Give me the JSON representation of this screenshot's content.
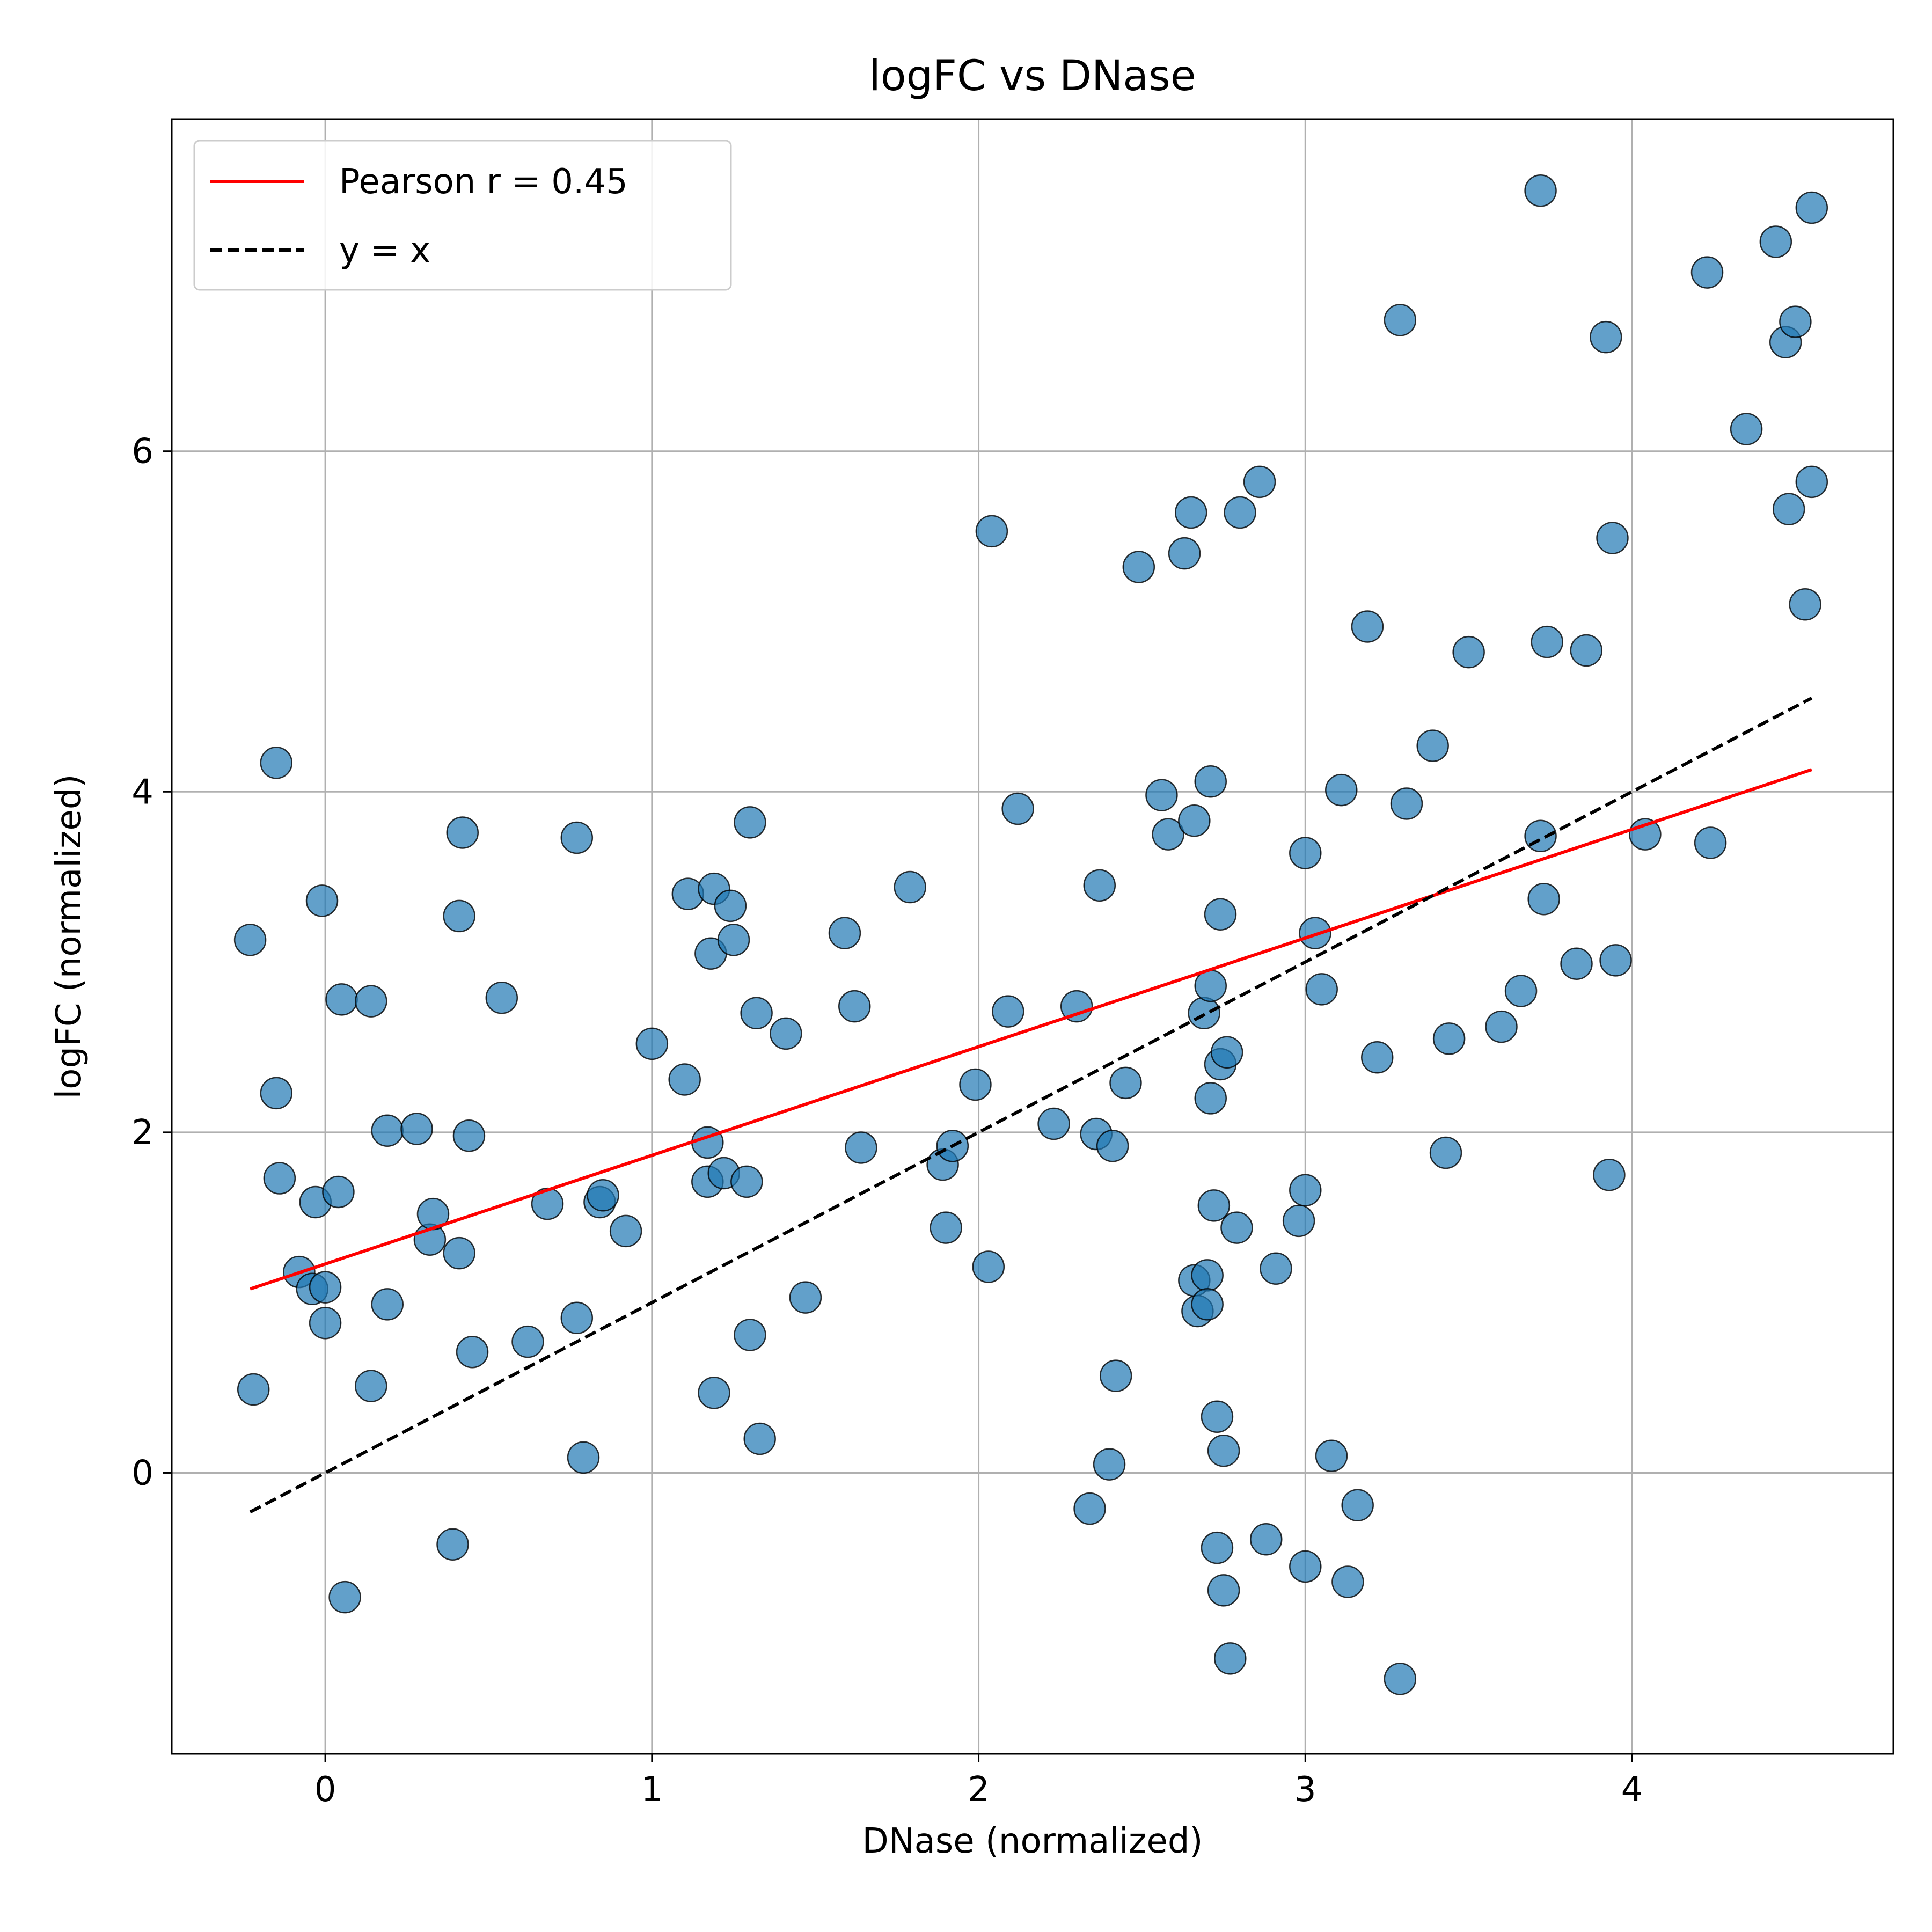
{
  "chart_data": {
    "type": "scatter",
    "title": "logFC vs DNase",
    "xlabel": "DNase (normalized)",
    "ylabel": "logFC (normalized)",
    "xlim": [
      -0.47,
      4.8
    ],
    "ylim": [
      -1.65,
      7.95
    ],
    "xticks": [
      0,
      1,
      2,
      3,
      4
    ],
    "yticks": [
      0,
      2,
      4,
      6
    ],
    "xtick_labels": [
      "0",
      "1",
      "2",
      "3",
      "4"
    ],
    "ytick_labels": [
      "0",
      "2",
      "4",
      "6"
    ],
    "grid": true,
    "legend_position": "top-left",
    "colors": {
      "points": "#1f77b4",
      "point_edge": "#000000",
      "fit_line": "#ff0000",
      "identity_line": "#000000",
      "grid": "#b0b0b0"
    },
    "lines": [
      {
        "name": "Pearson r = 0.45",
        "style": "solid",
        "color": "#ff0000",
        "x": [
          -0.23,
          4.55
        ],
        "y": [
          1.08,
          4.13
        ]
      },
      {
        "name": "y = x",
        "style": "dashed",
        "color": "#000000",
        "x": [
          -0.23,
          4.55
        ],
        "y": [
          -0.23,
          4.55
        ]
      }
    ],
    "points": [
      [
        -0.23,
        3.13
      ],
      [
        -0.22,
        0.49
      ],
      [
        -0.15,
        4.17
      ],
      [
        -0.15,
        2.23
      ],
      [
        -0.14,
        1.73
      ],
      [
        -0.08,
        1.18
      ],
      [
        -0.04,
        1.08
      ],
      [
        -0.03,
        1.59
      ],
      [
        0.0,
        1.09
      ],
      [
        0.0,
        0.88
      ],
      [
        -0.01,
        3.36
      ],
      [
        0.04,
        1.65
      ],
      [
        0.05,
        2.78
      ],
      [
        0.06,
        -0.73
      ],
      [
        0.14,
        0.51
      ],
      [
        0.14,
        2.77
      ],
      [
        0.19,
        0.99
      ],
      [
        0.19,
        2.01
      ],
      [
        0.28,
        2.02
      ],
      [
        0.32,
        1.37
      ],
      [
        0.33,
        1.52
      ],
      [
        0.41,
        3.27
      ],
      [
        0.41,
        1.29
      ],
      [
        0.42,
        3.76
      ],
      [
        0.44,
        1.98
      ],
      [
        0.45,
        0.71
      ],
      [
        0.54,
        2.79
      ],
      [
        0.39,
        -0.42
      ],
      [
        0.62,
        0.77
      ],
      [
        0.68,
        1.58
      ],
      [
        0.77,
        3.73
      ],
      [
        0.77,
        0.91
      ],
      [
        0.79,
        0.09
      ],
      [
        0.84,
        1.59
      ],
      [
        0.85,
        1.63
      ],
      [
        0.92,
        1.42
      ],
      [
        1.0,
        2.52
      ],
      [
        1.1,
        2.31
      ],
      [
        1.11,
        3.4
      ],
      [
        1.17,
        1.94
      ],
      [
        1.17,
        1.71
      ],
      [
        1.18,
        3.05
      ],
      [
        1.19,
        3.43
      ],
      [
        1.19,
        0.47
      ],
      [
        1.22,
        1.76
      ],
      [
        1.24,
        3.33
      ],
      [
        1.25,
        3.13
      ],
      [
        1.29,
        1.71
      ],
      [
        1.3,
        3.82
      ],
      [
        1.3,
        0.81
      ],
      [
        1.32,
        2.7
      ],
      [
        1.33,
        0.2
      ],
      [
        1.41,
        2.58
      ],
      [
        1.47,
        1.03
      ],
      [
        1.59,
        3.17
      ],
      [
        1.62,
        2.74
      ],
      [
        1.64,
        1.91
      ],
      [
        1.79,
        3.44
      ],
      [
        1.89,
        1.81
      ],
      [
        1.9,
        1.44
      ],
      [
        1.92,
        1.92
      ],
      [
        1.99,
        2.28
      ],
      [
        2.03,
        1.21
      ],
      [
        2.04,
        5.53
      ],
      [
        2.09,
        2.71
      ],
      [
        2.12,
        3.9
      ],
      [
        2.23,
        2.05
      ],
      [
        2.3,
        2.74
      ],
      [
        2.34,
        -0.21
      ],
      [
        2.36,
        1.99
      ],
      [
        2.37,
        3.45
      ],
      [
        2.4,
        0.05
      ],
      [
        2.41,
        1.92
      ],
      [
        2.42,
        0.57
      ],
      [
        2.45,
        2.29
      ],
      [
        2.49,
        5.32
      ],
      [
        2.56,
        3.98
      ],
      [
        2.58,
        3.75
      ],
      [
        2.63,
        5.4
      ],
      [
        2.65,
        5.64
      ],
      [
        2.66,
        3.83
      ],
      [
        2.66,
        1.13
      ],
      [
        2.67,
        0.95
      ],
      [
        2.69,
        2.7
      ],
      [
        2.7,
        1.16
      ],
      [
        2.7,
        0.99
      ],
      [
        2.71,
        4.06
      ],
      [
        2.71,
        2.86
      ],
      [
        2.71,
        2.2
      ],
      [
        2.72,
        1.57
      ],
      [
        2.73,
        0.33
      ],
      [
        2.73,
        -0.44
      ],
      [
        2.74,
        3.28
      ],
      [
        2.74,
        2.4
      ],
      [
        2.75,
        -0.69
      ],
      [
        2.75,
        0.13
      ],
      [
        2.76,
        2.47
      ],
      [
        2.77,
        -1.09
      ],
      [
        2.79,
        1.44
      ],
      [
        2.8,
        5.64
      ],
      [
        2.86,
        5.82
      ],
      [
        2.88,
        -0.39
      ],
      [
        2.91,
        1.2
      ],
      [
        2.98,
        1.48
      ],
      [
        3.0,
        1.66
      ],
      [
        3.0,
        3.64
      ],
      [
        3.0,
        -0.55
      ],
      [
        3.03,
        3.17
      ],
      [
        3.05,
        2.84
      ],
      [
        3.08,
        0.1
      ],
      [
        3.11,
        4.01
      ],
      [
        3.13,
        -0.64
      ],
      [
        3.16,
        -0.19
      ],
      [
        3.19,
        4.97
      ],
      [
        3.22,
        2.44
      ],
      [
        3.29,
        6.77
      ],
      [
        3.29,
        -1.21
      ],
      [
        3.31,
        3.93
      ],
      [
        3.39,
        4.27
      ],
      [
        3.43,
        1.88
      ],
      [
        3.44,
        2.55
      ],
      [
        3.5,
        4.82
      ],
      [
        3.6,
        2.62
      ],
      [
        3.66,
        2.83
      ],
      [
        3.72,
        7.53
      ],
      [
        3.72,
        3.74
      ],
      [
        3.73,
        3.37
      ],
      [
        3.74,
        4.88
      ],
      [
        3.83,
        2.99
      ],
      [
        3.86,
        4.83
      ],
      [
        3.92,
        6.67
      ],
      [
        3.93,
        1.75
      ],
      [
        3.94,
        5.49
      ],
      [
        3.95,
        3.01
      ],
      [
        4.04,
        3.75
      ],
      [
        4.23,
        7.05
      ],
      [
        4.24,
        3.7
      ],
      [
        4.35,
        6.13
      ],
      [
        4.44,
        7.23
      ],
      [
        4.47,
        6.64
      ],
      [
        4.48,
        5.66
      ],
      [
        4.5,
        6.76
      ],
      [
        4.53,
        5.1
      ],
      [
        4.55,
        7.43
      ],
      [
        4.55,
        5.82
      ]
    ]
  }
}
